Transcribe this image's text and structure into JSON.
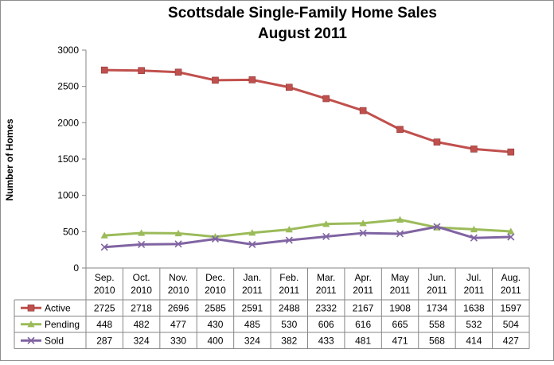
{
  "chart_data": {
    "type": "line",
    "title": "Scottsdale Single-Family  Home Sales",
    "subtitle": "August 2011",
    "ylabel": "Number of Homes",
    "xlabel": "",
    "ylim": [
      0,
      3000
    ],
    "yticks": [
      0,
      500,
      1000,
      1500,
      2000,
      2500,
      3000
    ],
    "grid": false,
    "legend": "data-table-left",
    "categories": [
      [
        "Sep.",
        "2010"
      ],
      [
        "Oct.",
        "2010"
      ],
      [
        "Nov.",
        "2010"
      ],
      [
        "Dec.",
        "2010"
      ],
      [
        "Jan.",
        "2011"
      ],
      [
        "Feb.",
        "2011"
      ],
      [
        "Mar.",
        "2011"
      ],
      [
        "Apr.",
        "2011"
      ],
      [
        "May",
        "2011"
      ],
      [
        "Jun.",
        "2011"
      ],
      [
        "Jul.",
        "2011"
      ],
      [
        "Aug.",
        "2011"
      ]
    ],
    "series": [
      {
        "name": "Active",
        "color": "#C0504D",
        "marker": "square",
        "values": [
          2725,
          2718,
          2696,
          2585,
          2591,
          2488,
          2332,
          2167,
          1908,
          1734,
          1638,
          1597
        ]
      },
      {
        "name": "Pending",
        "color": "#9BBB59",
        "marker": "triangle",
        "values": [
          448,
          482,
          477,
          430,
          485,
          530,
          606,
          616,
          665,
          558,
          532,
          504
        ]
      },
      {
        "name": "Sold",
        "color": "#8064A2",
        "marker": "x",
        "values": [
          287,
          324,
          330,
          400,
          324,
          382,
          433,
          481,
          471,
          568,
          414,
          427
        ]
      }
    ]
  }
}
